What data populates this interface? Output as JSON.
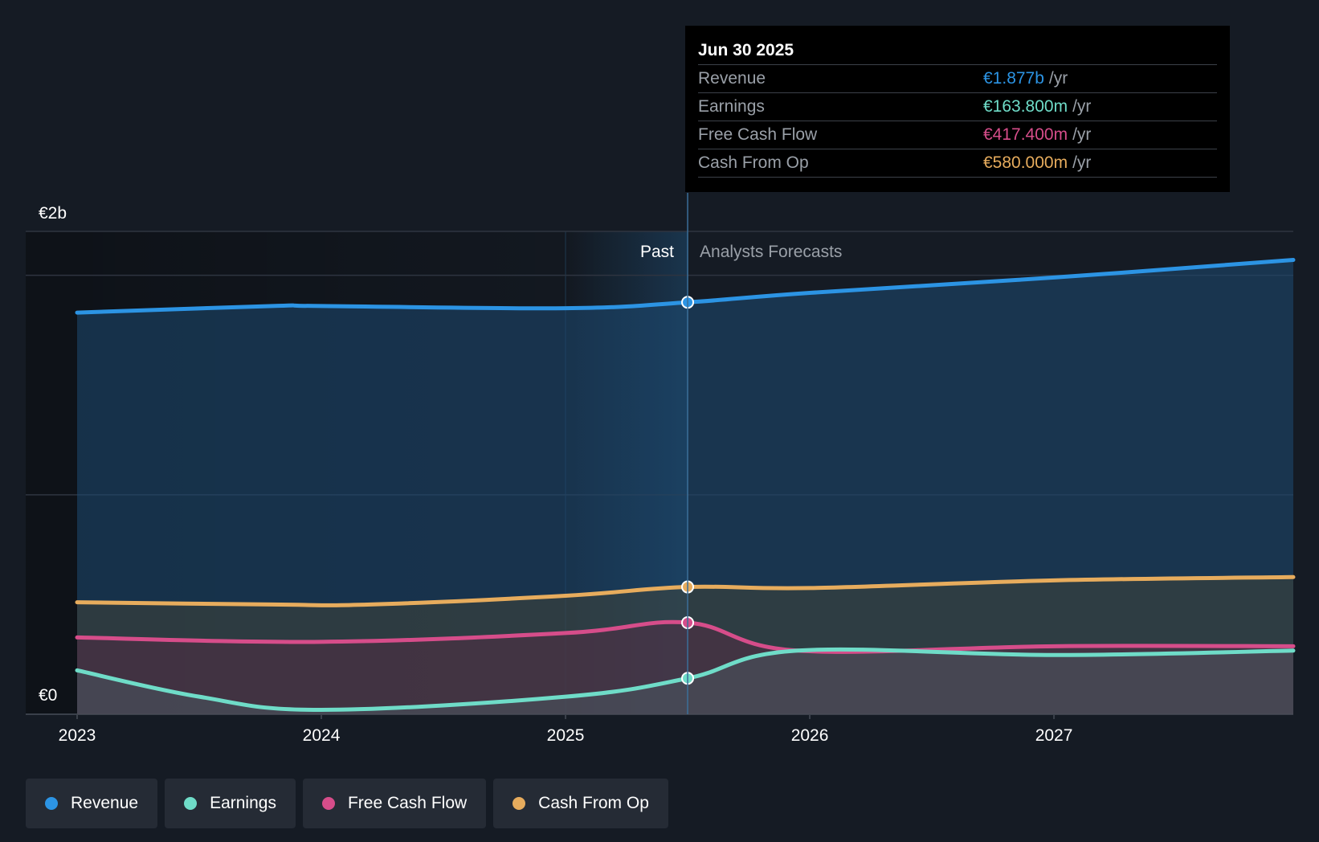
{
  "chart_data": {
    "type": "area",
    "title": "",
    "y_axis_labels": [
      "€2b",
      "€0"
    ],
    "ylim": [
      0,
      2.2
    ],
    "xlim": [
      2023.0,
      2027.98
    ],
    "x_ticks": [
      "2023",
      "2024",
      "2025",
      "2026",
      "2027"
    ],
    "x_tick_values": [
      2023,
      2024,
      2025,
      2026,
      2027
    ],
    "divider_x": 2025.5,
    "region_labels": {
      "past": "Past",
      "forecast": "Analysts Forecasts"
    },
    "series": [
      {
        "name": "Revenue",
        "color": "#2c94e4",
        "x": [
          2023.0,
          2023.8,
          2024.0,
          2025.0,
          2025.5,
          2026.0,
          2027.0,
          2027.98
        ],
        "values": [
          1.83,
          1.86,
          1.86,
          1.85,
          1.877,
          1.92,
          1.99,
          2.07
        ]
      },
      {
        "name": "Cash From Op",
        "color": "#e7ac5d",
        "x": [
          2023.0,
          2023.8,
          2024.2,
          2025.0,
          2025.5,
          2026.0,
          2027.0,
          2027.98
        ],
        "values": [
          0.51,
          0.5,
          0.5,
          0.54,
          0.58,
          0.575,
          0.61,
          0.625
        ]
      },
      {
        "name": "Free Cash Flow",
        "color": "#d64d8a",
        "x": [
          2023.0,
          2024.0,
          2025.0,
          2025.5,
          2025.95,
          2027.0,
          2027.98
        ],
        "values": [
          0.35,
          0.33,
          0.37,
          0.4174,
          0.29,
          0.31,
          0.31
        ]
      },
      {
        "name": "Earnings",
        "color": "#6fdcc8",
        "x": [
          2023.0,
          2023.5,
          2024.0,
          2025.0,
          2025.5,
          2025.95,
          2027.0,
          2027.98
        ],
        "values": [
          0.2,
          0.08,
          0.02,
          0.08,
          0.1638,
          0.29,
          0.27,
          0.29
        ]
      }
    ],
    "highlight": {
      "x": 2025.5,
      "date": "Jun 30 2025"
    }
  },
  "tooltip": {
    "date": "Jun 30 2025",
    "rows": [
      {
        "name": "Revenue",
        "value": "€1.877b",
        "unit": "/yr",
        "color": "#2c94e4"
      },
      {
        "name": "Earnings",
        "value": "€163.800m",
        "unit": "/yr",
        "color": "#6fdcc8"
      },
      {
        "name": "Free Cash Flow",
        "value": "€417.400m",
        "unit": "/yr",
        "color": "#d64d8a"
      },
      {
        "name": "Cash From Op",
        "value": "€580.000m",
        "unit": "/yr",
        "color": "#e7ac5d"
      }
    ]
  },
  "legend": [
    {
      "label": "Revenue",
      "color": "#2c94e4"
    },
    {
      "label": "Earnings",
      "color": "#6fdcc8"
    },
    {
      "label": "Free Cash Flow",
      "color": "#d64d8a"
    },
    {
      "label": "Cash From Op",
      "color": "#e7ac5d"
    }
  ]
}
